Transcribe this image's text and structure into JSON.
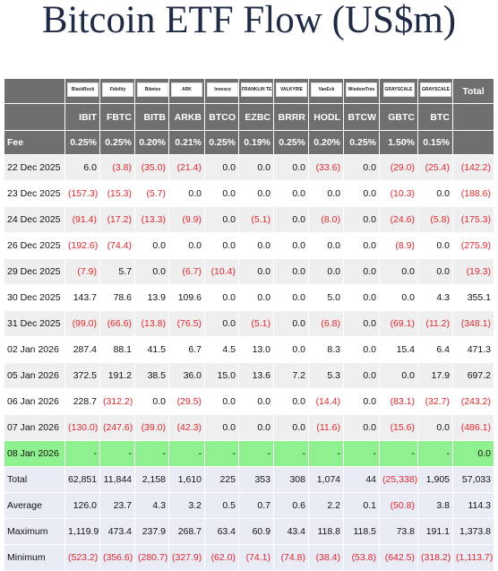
{
  "title": "Bitcoin ETF Flow (US$m)",
  "table": {
    "logos": [
      "BlackRock",
      "Fidelity",
      "Bitwise",
      "ARK",
      "Invesco",
      "FRANKLIN TEMPLETON",
      "VALKYRIE",
      "VanEck",
      "WisdomTree",
      "GRAYSCALE",
      "GRAYSCALE"
    ],
    "total_label": "Total",
    "tickers": [
      "IBIT",
      "FBTC",
      "BITB",
      "ARKB",
      "BTCO",
      "EZBC",
      "BRRR",
      "HODL",
      "BTCW",
      "GBTC",
      "BTC"
    ],
    "fee_label": "Fee",
    "fees": [
      "0.25%",
      "0.25%",
      "0.20%",
      "0.21%",
      "0.25%",
      "0.19%",
      "0.25%",
      "0.20%",
      "0.25%",
      "1.50%",
      "0.15%"
    ],
    "rows": [
      [
        "22 Dec 2025",
        "6.0",
        "(3.8)",
        "(35.0)",
        "(21.4)",
        "0.0",
        "0.0",
        "0.0",
        "(33.6)",
        "0.0",
        "(29.0)",
        "(25.4)",
        "(142.2)"
      ],
      [
        "23 Dec 2025",
        "(157.3)",
        "(15.3)",
        "(5.7)",
        "0.0",
        "0.0",
        "0.0",
        "0.0",
        "0.0",
        "0.0",
        "(10.3)",
        "0.0",
        "(188.6)"
      ],
      [
        "24 Dec 2025",
        "(91.4)",
        "(17.2)",
        "(13.3)",
        "(9.9)",
        "0.0",
        "(5.1)",
        "0.0",
        "(8.0)",
        "0.0",
        "(24.6)",
        "(5.8)",
        "(175.3)"
      ],
      [
        "26 Dec 2025",
        "(192.6)",
        "(74.4)",
        "0.0",
        "0.0",
        "0.0",
        "0.0",
        "0.0",
        "0.0",
        "0.0",
        "(8.9)",
        "0.0",
        "(275.9)"
      ],
      [
        "29 Dec 2025",
        "(7.9)",
        "5.7",
        "0.0",
        "(6.7)",
        "(10.4)",
        "0.0",
        "0.0",
        "0.0",
        "0.0",
        "0.0",
        "0.0",
        "(19.3)"
      ],
      [
        "30 Dec 2025",
        "143.7",
        "78.6",
        "13.9",
        "109.6",
        "0.0",
        "0.0",
        "0.0",
        "5.0",
        "0.0",
        "0.0",
        "4.3",
        "355.1"
      ],
      [
        "31 Dec 2025",
        "(99.0)",
        "(66.6)",
        "(13.8)",
        "(76.5)",
        "0.0",
        "(5.1)",
        "0.0",
        "(6.8)",
        "0.0",
        "(69.1)",
        "(11.2)",
        "(348.1)"
      ],
      [
        "02 Jan 2026",
        "287.4",
        "88.1",
        "41.5",
        "6.7",
        "4.5",
        "13.0",
        "0.0",
        "8.3",
        "0.0",
        "15.4",
        "6.4",
        "471.3"
      ],
      [
        "05 Jan 2026",
        "372.5",
        "191.2",
        "38.5",
        "36.0",
        "15.0",
        "13.6",
        "7.2",
        "5.3",
        "0.0",
        "0.0",
        "17.9",
        "697.2"
      ],
      [
        "06 Jan 2026",
        "228.7",
        "(312.2)",
        "0.0",
        "(29.5)",
        "0.0",
        "0.0",
        "0.0",
        "(14.4)",
        "0.0",
        "(83.1)",
        "(32.7)",
        "(243.2)"
      ],
      [
        "07 Jan 2026",
        "(130.0)",
        "(247.6)",
        "(39.0)",
        "(42.3)",
        "0.0",
        "0.0",
        "0.0",
        "(11.6)",
        "0.0",
        "(15.6)",
        "0.0",
        "(486.1)"
      ],
      [
        "08 Jan 2026",
        "-",
        "-",
        "-",
        "-",
        "-",
        "-",
        "-",
        "-",
        "-",
        "-",
        "-",
        "0.0"
      ]
    ],
    "summary": [
      [
        "Total",
        "62,851",
        "11,844",
        "2,158",
        "1,610",
        "225",
        "353",
        "308",
        "1,074",
        "44",
        "(25,338)",
        "1,905",
        "57,033"
      ],
      [
        "Average",
        "126.0",
        "23.7",
        "4.3",
        "3.2",
        "0.5",
        "0.7",
        "0.6",
        "2.2",
        "0.1",
        "(50.8)",
        "3.8",
        "114.3"
      ],
      [
        "Maximum",
        "1,119.9",
        "473.4",
        "237.9",
        "268.7",
        "63.4",
        "60.9",
        "43.4",
        "118.8",
        "118.5",
        "73.8",
        "191.1",
        "1,373.8"
      ],
      [
        "Minimum",
        "(523.2)",
        "(356.6)",
        "(280.7)",
        "(327.9)",
        "(62.0)",
        "(74.1)",
        "(74.8)",
        "(38.4)",
        "(53.8)",
        "(642.5)",
        "(318.2)",
        "(1,113.7)"
      ]
    ]
  }
}
